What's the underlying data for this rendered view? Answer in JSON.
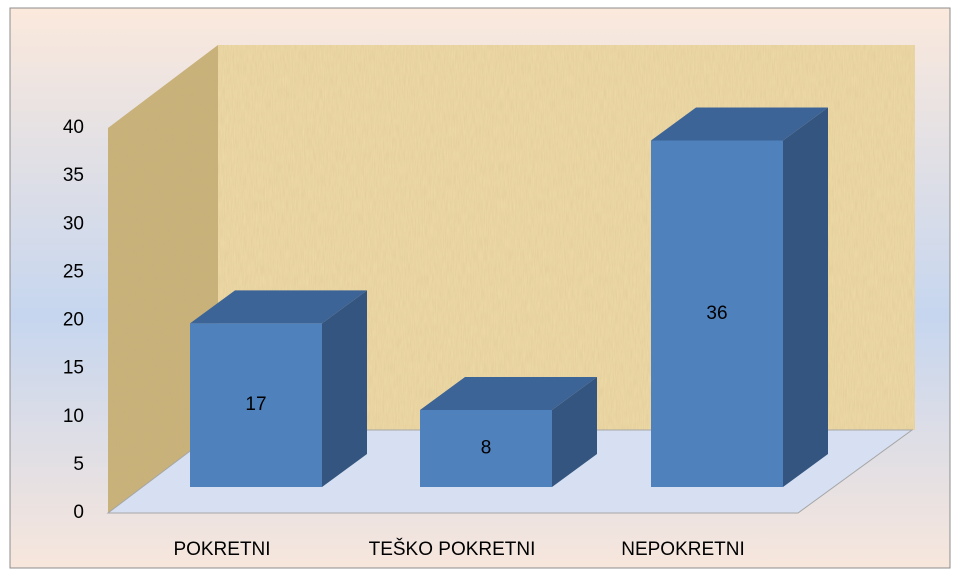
{
  "chart_data": {
    "type": "bar3d",
    "categories": [
      "POKRETNI",
      "TEŠKO POKRETNI",
      "NEPOKRETNI"
    ],
    "values": [
      17,
      8,
      36
    ],
    "color": "#4f81bd",
    "ylim": [
      0,
      40
    ],
    "yticks": [
      0,
      5,
      10,
      15,
      20,
      25,
      30,
      35,
      40
    ],
    "grid": false
  }
}
